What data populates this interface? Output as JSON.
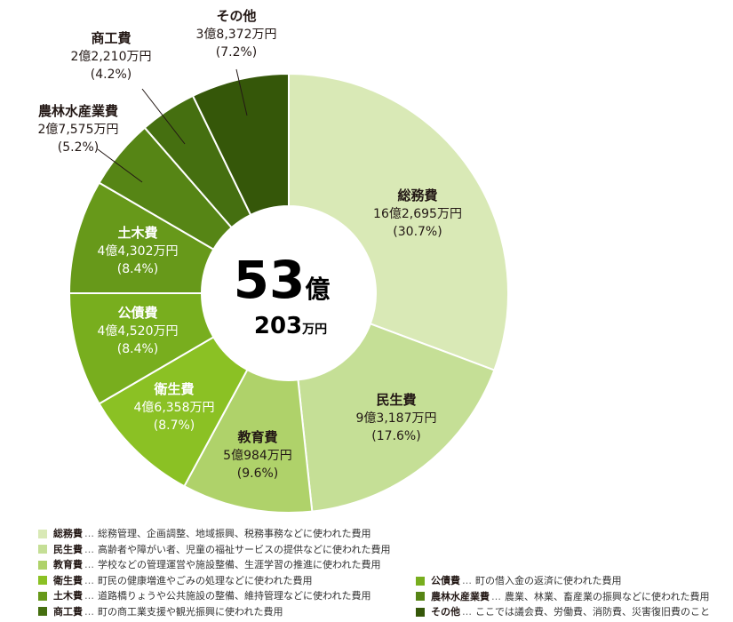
{
  "chart_data": {
    "type": "donut",
    "center": {
      "value": "53",
      "unit": "億",
      "sub_value": "203",
      "sub_unit": "万円"
    },
    "slices": [
      {
        "key": "soumu",
        "name": "総務費",
        "amount": "16億2,695万円",
        "pct": "(30.7%)",
        "value": 30.7,
        "color": "#d9e9b6"
      },
      {
        "key": "minsei",
        "name": "民生費",
        "amount": "9億3,187万円",
        "pct": "(17.6%)",
        "value": 17.6,
        "color": "#c5df96"
      },
      {
        "key": "kyouiku",
        "name": "教育費",
        "amount": "5億984万円",
        "pct": "(9.6%)",
        "value": 9.6,
        "color": "#afd26a"
      },
      {
        "key": "eisei",
        "name": "衛生費",
        "amount": "4億6,358万円",
        "pct": "(8.7%)",
        "value": 8.7,
        "color": "#8bc124"
      },
      {
        "key": "kousai",
        "name": "公債費",
        "amount": "4億4,520万円",
        "pct": "(8.4%)",
        "value": 8.4,
        "color": "#78ae1e"
      },
      {
        "key": "doboku",
        "name": "土木費",
        "amount": "4億4,302万円",
        "pct": "(8.4%)",
        "value": 8.4,
        "color": "#67991a"
      },
      {
        "key": "nourin",
        "name": "農林水産業費",
        "amount": "2億7,575万円",
        "pct": "(5.2%)",
        "value": 5.2,
        "color": "#568515"
      },
      {
        "key": "shoukou",
        "name": "商工費",
        "amount": "2億2,210万円",
        "pct": "(4.2%)",
        "value": 4.2,
        "color": "#456f10"
      },
      {
        "key": "sonota",
        "name": "その他",
        "amount": "3億8,372万円",
        "pct": "(7.2%)",
        "value": 7.2,
        "color": "#355709"
      }
    ]
  },
  "legend": [
    {
      "name": "総務費",
      "desc": "総務管理、企画調整、地域振興、税務事務などに使われた費用",
      "color": "#d9e9b6"
    },
    {
      "name": "民生費",
      "desc": "高齢者や障がい者、児童の福祉サービスの提供などに使われた費用",
      "color": "#c5df96"
    },
    {
      "name": "教育費",
      "desc": "学校などの管理運営や施設整備、生涯学習の推進に使われた費用",
      "color": "#afd26a"
    },
    {
      "name": "衛生費",
      "desc": "町民の健康増進やごみの処理などに使われた費用",
      "color": "#8bc124"
    },
    {
      "name": "土木費",
      "desc": "道路橋りょうや公共施設の整備、維持管理などに使われた費用",
      "color": "#67991a"
    },
    {
      "name": "商工費",
      "desc": "町の商工業支援や観光振興に使われた費用",
      "color": "#456f10"
    },
    {
      "name": "公債費",
      "desc": "町の借入金の返済に使われた費用",
      "color": "#78ae1e"
    },
    {
      "name": "農林水産業費",
      "desc": "農業、林業、畜産業の振興などに使われた費用",
      "color": "#568515"
    },
    {
      "name": "その他",
      "desc": "ここでは議会費、労働費、消防費、災害復旧費のこと",
      "color": "#355709"
    }
  ],
  "legend_separator": "…"
}
